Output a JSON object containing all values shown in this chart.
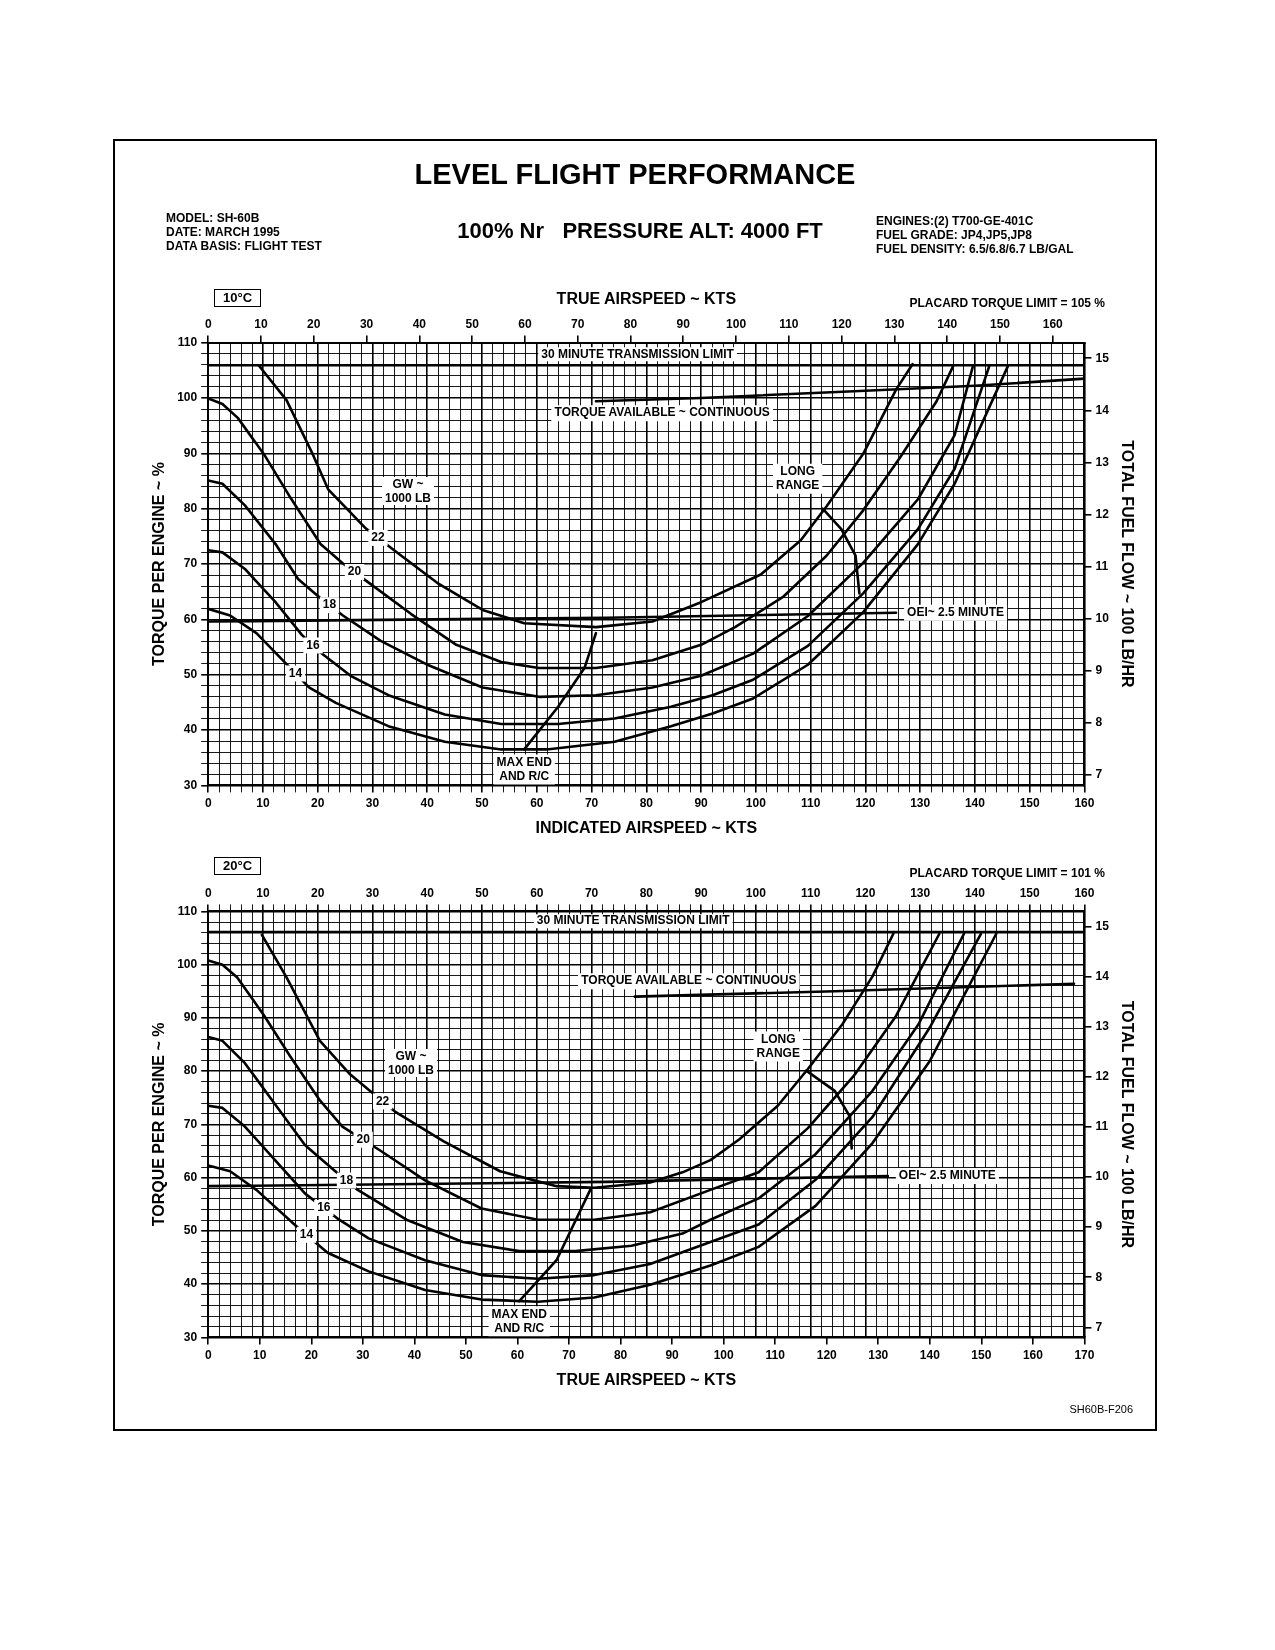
{
  "chart_data": [
    {
      "type": "line",
      "title": "LEVEL FLIGHT PERFORMANCE",
      "subtitle": "100% Nr   PRESSURE ALT: 4000 FT",
      "xlabel": "INDICATED AIRSPEED ~ KTS",
      "x2label": "TRUE AIRSPEED ~ KTS",
      "ylabel": "TORQUE PER ENGINE ~ %",
      "y2label": "TOTAL FUEL FLOW ~ 100 LB/HR",
      "xlim": [
        0,
        160
      ],
      "xticks": [
        0,
        {
          "value": 2,
          "label": null
        },
        {
          "value": 4,
          "label": null
        },
        {
          "value": 6,
          "label": null
        },
        {
          "value": 8,
          "label": null
        },
        10,
        {
          "value": 12,
          "label": null
        },
        {
          "value": 14,
          "label": null
        },
        {
          "value": 16,
          "label": null
        },
        {
          "value": 18,
          "label": null
        },
        20,
        {
          "value": 22,
          "label": null
        },
        {
          "value": 24,
          "label": null
        },
        {
          "value": 26,
          "label": null
        },
        {
          "value": 28,
          "label": null
        },
        30,
        {
          "value": 32,
          "label": null
        },
        {
          "value": 34,
          "label": null
        },
        {
          "value": 36,
          "label": null
        },
        {
          "value": 38,
          "label": null
        },
        40,
        {
          "value": 42,
          "label": null
        },
        {
          "value": 44,
          "label": null
        },
        {
          "value": 46,
          "label": null
        },
        {
          "value": 48,
          "label": null
        },
        50,
        {
          "value": 52,
          "label": null
        },
        {
          "value": 54,
          "label": null
        },
        {
          "value": 56,
          "label": null
        },
        {
          "value": 58,
          "label": null
        },
        60,
        {
          "value": 62,
          "label": null
        },
        {
          "value": 64,
          "label": null
        },
        {
          "value": 66,
          "label": null
        },
        {
          "value": 68,
          "label": null
        },
        70,
        {
          "value": 72,
          "label": null
        },
        {
          "value": 74,
          "label": null
        },
        {
          "value": 76,
          "label": null
        },
        {
          "value": 78,
          "label": null
        },
        80,
        {
          "value": 82,
          "label": null
        },
        {
          "value": 84,
          "label": null
        },
        {
          "value": 86,
          "label": null
        },
        {
          "value": 88,
          "label": null
        },
        90,
        {
          "value": 92,
          "label": null
        },
        {
          "value": 94,
          "label": null
        },
        {
          "value": 96,
          "label": null
        },
        {
          "value": 98,
          "label": null
        },
        100,
        {
          "value": 102,
          "label": null
        },
        {
          "value": 104,
          "label": null
        },
        {
          "value": 106,
          "label": null
        },
        {
          "value": 108,
          "label": null
        },
        110,
        {
          "value": 112,
          "label": null
        },
        {
          "value": 114,
          "label": null
        },
        {
          "value": 116,
          "label": null
        },
        {
          "value": 118,
          "label": null
        },
        120,
        {
          "value": 122,
          "label": null
        },
        {
          "value": 124,
          "label": null
        },
        {
          "value": 126,
          "label": null
        },
        {
          "value": 128,
          "label": null
        },
        130,
        {
          "value": 132,
          "label": null
        },
        {
          "value": 134,
          "label": null
        },
        {
          "value": 136,
          "label": null
        },
        {
          "value": 138,
          "label": null
        },
        140,
        {
          "value": 142,
          "label": null
        },
        {
          "value": 144,
          "label": null
        },
        {
          "value": 146,
          "label": null
        },
        {
          "value": 148,
          "label": null
        },
        150,
        {
          "value": 152,
          "label": null
        },
        {
          "value": 154,
          "label": null
        },
        {
          "value": 156,
          "label": null
        },
        {
          "value": 158,
          "label": null
        },
        160
      ],
      "x2lim": [
        0,
        166
      ],
      "x2ticks": [
        0,
        10,
        20,
        30,
        40,
        50,
        60,
        70,
        80,
        90,
        100,
        110,
        120,
        130,
        140,
        150,
        160
      ],
      "ylim": [
        30,
        110
      ],
      "yticks": [
        30,
        {
          "value": 32,
          "label": null
        },
        {
          "value": 34,
          "label": null
        },
        {
          "value": 36,
          "label": null
        },
        {
          "value": 38,
          "label": null
        },
        40,
        {
          "value": 42,
          "label": null
        },
        {
          "value": 44,
          "label": null
        },
        {
          "value": 46,
          "label": null
        },
        {
          "value": 48,
          "label": null
        },
        50,
        {
          "value": 52,
          "label": null
        },
        {
          "value": 54,
          "label": null
        },
        {
          "value": 56,
          "label": null
        },
        {
          "value": 58,
          "label": null
        },
        60,
        {
          "value": 62,
          "label": null
        },
        {
          "value": 64,
          "label": null
        },
        {
          "value": 66,
          "label": null
        },
        {
          "value": 68,
          "label": null
        },
        70,
        {
          "value": 72,
          "label": null
        },
        {
          "value": 74,
          "label": null
        },
        {
          "value": 76,
          "label": null
        },
        {
          "value": 78,
          "label": null
        },
        80,
        {
          "value": 82,
          "label": null
        },
        {
          "value": 84,
          "label": null
        },
        {
          "value": 86,
          "label": null
        },
        {
          "value": 88,
          "label": null
        },
        90,
        {
          "value": 92,
          "label": null
        },
        {
          "value": 94,
          "label": null
        },
        {
          "value": 96,
          "label": null
        },
        {
          "value": 98,
          "label": null
        },
        100,
        {
          "value": 102,
          "label": null
        },
        {
          "value": 104,
          "label": null
        },
        {
          "value": 106,
          "label": null
        },
        {
          "value": 108,
          "label": null
        },
        110
      ],
      "y2lim": [
        6.8,
        15.3
      ],
      "y2ticks": [
        7,
        8,
        9,
        10,
        11,
        12,
        13,
        14,
        15
      ],
      "grid": true,
      "marker": "none",
      "line_style": "solid",
      "annotations": [
        "MODEL: SH-60B",
        "DATE: MARCH 1995",
        "DATA BASIS: FLIGHT TEST",
        "ENGINES:(2) T700-GE-401C",
        "FUEL GRADE: JP4,JP5,JP8",
        "FUEL DENSITY: 6.5/6.8/6.7 LB/GAL",
        "10°C",
        "PLACARD TORQUE LIMIT = 105 %",
        "GW ~\n1000 LB"
      ],
      "ref_lines": [
        {
          "axis": "y",
          "value": 105.9,
          "label": "30 MINUTE TRANSMISSION LIMIT",
          "color": "#000000"
        }
      ],
      "series": [
        {
          "name": "22",
          "color": "#000000",
          "x": [
            9.2,
            14.3,
            19.1,
            21.9,
            28.8,
            34.3,
            41.8,
            50.1,
            57.7,
            70.8,
            81.1,
            90.0,
            100.9,
            108.2,
            112.9,
            119.6,
            125.6,
            128.6
          ],
          "values": [
            105.9,
            99.6,
            89.8,
            83.5,
            76.4,
            72.2,
            66.6,
            61.7,
            59.3,
            58.6,
            59.6,
            63.1,
            68.1,
            74.3,
            80.4,
            89.9,
            101.5,
            106.1
          ]
        },
        {
          "name": "20",
          "color": "#000000",
          "x": [
            0,
            2.6,
            5.4,
            10.2,
            15.0,
            20.5,
            24.6,
            28.8,
            37.0,
            45.3,
            53.5,
            60.4,
            70.8,
            81.1,
            90.0,
            96.2,
            104.9,
            112.9,
            119.6,
            126.3,
            133.0,
            136.0
          ],
          "values": [
            99.9,
            98.9,
            96.4,
            89.8,
            82.0,
            73.6,
            70.1,
            67.0,
            61.0,
            55.4,
            52.3,
            51.2,
            51.2,
            52.6,
            55.4,
            58.6,
            64.0,
            71.5,
            79.7,
            89.2,
            99.4,
            105.7
          ]
        },
        {
          "name": "18",
          "color": "#000000",
          "x": [
            0,
            2.6,
            6.7,
            12.3,
            16.4,
            20.5,
            24.6,
            31.5,
            39.8,
            50.1,
            60.4,
            70.8,
            81.1,
            90.0,
            99.5,
            109.5,
            119.6,
            129.6,
            136.3,
            139.6
          ],
          "values": [
            85.1,
            84.5,
            80.6,
            73.6,
            67.3,
            63.8,
            60.7,
            56.1,
            51.9,
            47.7,
            46.0,
            46.3,
            47.7,
            49.8,
            53.8,
            60.6,
            70.2,
            81.7,
            93.3,
            105.6
          ]
        },
        {
          "name": "16",
          "color": "#000000",
          "x": [
            0,
            2.6,
            6.7,
            12.3,
            17.1,
            20.5,
            26.0,
            32.9,
            43.2,
            53.5,
            63.9,
            74.2,
            84.5,
            92.1,
            99.5,
            109.5,
            119.6,
            129.6,
            136.3,
            142.6
          ],
          "values": [
            72.5,
            72.1,
            69.1,
            63.1,
            57.2,
            54.0,
            49.8,
            46.3,
            42.8,
            41.1,
            41.1,
            42.1,
            44.2,
            46.3,
            49.1,
            55.2,
            64.7,
            76.3,
            87.2,
            105.7
          ]
        },
        {
          "name": "14",
          "color": "#000000",
          "x": [
            0,
            4.0,
            8.8,
            14.3,
            18.4,
            23.3,
            32.9,
            43.2,
            53.5,
            61.8,
            74.2,
            84.5,
            92.1,
            99.5,
            109.5,
            119.6,
            129.6,
            136.3,
            146.0
          ],
          "values": [
            61.9,
            60.7,
            57.5,
            51.9,
            47.7,
            44.9,
            40.7,
            37.9,
            36.5,
            36.5,
            37.9,
            40.7,
            43.0,
            45.7,
            51.8,
            61.3,
            73.6,
            84.5,
            105.7
          ]
        },
        {
          "name": "TORQUE AVAILABLE ~ CONTINUOUS",
          "color": "#000000",
          "x": [
            70.8,
            90,
            120,
            140,
            160
          ],
          "values": [
            99.4,
            100,
            101.3,
            102.2,
            103.5
          ]
        },
        {
          "name": "OEI~ 2.5 MINUTE",
          "color": "#000000",
          "x": [
            0,
            72.8,
            125.6
          ],
          "values": [
            59.6,
            60.3,
            61.2
          ]
        },
        {
          "name": "MAX END\nAND R/C",
          "color": "#000000",
          "x": [
            57.7,
            63.9,
            68.7,
            70.8
          ],
          "values": [
            36.5,
            44.2,
            51.2,
            57.5
          ]
        },
        {
          "name": "LONG\nRANGE",
          "color": "#000000",
          "x": [
            112.2,
            115.6,
            118.2,
            118.9
          ],
          "values": [
            80.0,
            76.3,
            71.5,
            64.7
          ]
        }
      ]
    },
    {
      "type": "line",
      "xlabel": "TRUE AIRSPEED ~ KTS",
      "ylabel": "TORQUE PER ENGINE ~ %",
      "y2label": "TOTAL FUEL FLOW ~ 100 LB/HR",
      "xlim": [
        0,
        170
      ],
      "xticks": [
        0,
        10,
        20,
        30,
        40,
        50,
        60,
        70,
        80,
        90,
        100,
        110,
        120,
        130,
        140,
        150,
        160,
        170
      ],
      "x2lim": [
        0,
        160
      ],
      "x2ticks": [
        0,
        {
          "value": 2,
          "label": null
        },
        {
          "value": 4,
          "label": null
        },
        {
          "value": 6,
          "label": null
        },
        {
          "value": 8,
          "label": null
        },
        10,
        {
          "value": 12,
          "label": null
        },
        {
          "value": 14,
          "label": null
        },
        {
          "value": 16,
          "label": null
        },
        {
          "value": 18,
          "label": null
        },
        20,
        {
          "value": 22,
          "label": null
        },
        {
          "value": 24,
          "label": null
        },
        {
          "value": 26,
          "label": null
        },
        {
          "value": 28,
          "label": null
        },
        30,
        {
          "value": 32,
          "label": null
        },
        {
          "value": 34,
          "label": null
        },
        {
          "value": 36,
          "label": null
        },
        {
          "value": 38,
          "label": null
        },
        40,
        {
          "value": 42,
          "label": null
        },
        {
          "value": 44,
          "label": null
        },
        {
          "value": 46,
          "label": null
        },
        {
          "value": 48,
          "label": null
        },
        50,
        {
          "value": 52,
          "label": null
        },
        {
          "value": 54,
          "label": null
        },
        {
          "value": 56,
          "label": null
        },
        {
          "value": 58,
          "label": null
        },
        60,
        {
          "value": 62,
          "label": null
        },
        {
          "value": 64,
          "label": null
        },
        {
          "value": 66,
          "label": null
        },
        {
          "value": 68,
          "label": null
        },
        70,
        {
          "value": 72,
          "label": null
        },
        {
          "value": 74,
          "label": null
        },
        {
          "value": 76,
          "label": null
        },
        {
          "value": 78,
          "label": null
        },
        80,
        {
          "value": 82,
          "label": null
        },
        {
          "value": 84,
          "label": null
        },
        {
          "value": 86,
          "label": null
        },
        {
          "value": 88,
          "label": null
        },
        90,
        {
          "value": 92,
          "label": null
        },
        {
          "value": 94,
          "label": null
        },
        {
          "value": 96,
          "label": null
        },
        {
          "value": 98,
          "label": null
        },
        100,
        {
          "value": 102,
          "label": null
        },
        {
          "value": 104,
          "label": null
        },
        {
          "value": 106,
          "label": null
        },
        {
          "value": 108,
          "label": null
        },
        110,
        {
          "value": 112,
          "label": null
        },
        {
          "value": 114,
          "label": null
        },
        {
          "value": 116,
          "label": null
        },
        {
          "value": 118,
          "label": null
        },
        120,
        {
          "value": 122,
          "label": null
        },
        {
          "value": 124,
          "label": null
        },
        {
          "value": 126,
          "label": null
        },
        {
          "value": 128,
          "label": null
        },
        130,
        {
          "value": 132,
          "label": null
        },
        {
          "value": 134,
          "label": null
        },
        {
          "value": 136,
          "label": null
        },
        {
          "value": 138,
          "label": null
        },
        140,
        {
          "value": 142,
          "label": null
        },
        {
          "value": 144,
          "label": null
        },
        {
          "value": 146,
          "label": null
        },
        {
          "value": 148,
          "label": null
        },
        150,
        {
          "value": 152,
          "label": null
        },
        {
          "value": 154,
          "label": null
        },
        {
          "value": 156,
          "label": null
        },
        {
          "value": 158,
          "label": null
        },
        160
      ],
      "ylim": [
        30,
        110
      ],
      "yticks": [
        30,
        {
          "value": 32,
          "label": null
        },
        {
          "value": 34,
          "label": null
        },
        {
          "value": 36,
          "label": null
        },
        {
          "value": 38,
          "label": null
        },
        40,
        {
          "value": 42,
          "label": null
        },
        {
          "value": 44,
          "label": null
        },
        {
          "value": 46,
          "label": null
        },
        {
          "value": 48,
          "label": null
        },
        50,
        {
          "value": 52,
          "label": null
        },
        {
          "value": 54,
          "label": null
        },
        {
          "value": 56,
          "label": null
        },
        {
          "value": 58,
          "label": null
        },
        60,
        {
          "value": 62,
          "label": null
        },
        {
          "value": 64,
          "label": null
        },
        {
          "value": 66,
          "label": null
        },
        {
          "value": 68,
          "label": null
        },
        70,
        {
          "value": 72,
          "label": null
        },
        {
          "value": 74,
          "label": null
        },
        {
          "value": 76,
          "label": null
        },
        {
          "value": 78,
          "label": null
        },
        80,
        {
          "value": 82,
          "label": null
        },
        {
          "value": 84,
          "label": null
        },
        {
          "value": 86,
          "label": null
        },
        {
          "value": 88,
          "label": null
        },
        90,
        {
          "value": 92,
          "label": null
        },
        {
          "value": 94,
          "label": null
        },
        {
          "value": 96,
          "label": null
        },
        {
          "value": 98,
          "label": null
        },
        100,
        {
          "value": 102,
          "label": null
        },
        {
          "value": 104,
          "label": null
        },
        {
          "value": 106,
          "label": null
        },
        {
          "value": 108,
          "label": null
        },
        110
      ],
      "y2lim": [
        6.8,
        15.3
      ],
      "y2ticks": [
        7,
        8,
        9,
        10,
        11,
        12,
        13,
        14,
        15
      ],
      "grid": true,
      "marker": "none",
      "line_style": "solid",
      "annotations": [
        "20°C",
        "PLACARD TORQUE LIMIT = 101 %",
        "SH60B-F206",
        "GW ~\n1000 LB"
      ],
      "ref_lines": [
        {
          "axis": "y",
          "value": 106.1,
          "label": "30 MINUTE TRANSMISSION LIMIT",
          "color": "#000000"
        }
      ],
      "series": [
        {
          "name": "22",
          "color": "#000000",
          "axis": "x2",
          "x": [
            9.8,
            14.3,
            20.4,
            25.9,
            30.0,
            34.1,
            43.0,
            53.3,
            63.6,
            70.5,
            80.7,
            86.6,
            91.7,
            97.0,
            104.0,
            109.5,
            115.8,
            121.3,
            125.1
          ],
          "values": [
            105.6,
            97.6,
            85.7,
            79.4,
            75.9,
            72.4,
            66.8,
            61.2,
            58.4,
            58.1,
            59.1,
            61.0,
            63.3,
            67.2,
            73.5,
            80.4,
            88.8,
            97.8,
            105.8
          ]
        },
        {
          "name": "20",
          "color": "#000000",
          "axis": "x2",
          "x": [
            0,
            2.6,
            5.3,
            10.1,
            14.9,
            20.4,
            24.5,
            31.4,
            39.6,
            49.9,
            60.2,
            70.5,
            80.7,
            91.7,
            100.5,
            109.5,
            117.8,
            125.5,
            133.5
          ],
          "values": [
            100.8,
            100.0,
            97.6,
            90.6,
            82.9,
            74.5,
            69.6,
            65.1,
            59.5,
            54.2,
            52.1,
            52.1,
            53.5,
            57.7,
            61.0,
            69.3,
            79.0,
            90.2,
            105.8
          ]
        },
        {
          "name": "18",
          "color": "#000000",
          "axis": "x2",
          "x": [
            0,
            2.6,
            6.7,
            12.2,
            17.7,
            23.2,
            27.3,
            36.2,
            46.5,
            56.8,
            67.0,
            77.3,
            86.6,
            91.7,
            100.5,
            110.9,
            121.3,
            129.7,
            138.0
          ],
          "values": [
            86.4,
            85.7,
            81.5,
            73.8,
            66.1,
            61.2,
            57.7,
            52.1,
            47.9,
            46.2,
            46.2,
            47.2,
            49.5,
            52.1,
            56.1,
            64.4,
            76.3,
            88.8,
            105.8
          ]
        },
        {
          "name": "16",
          "color": "#000000",
          "axis": "x2",
          "x": [
            0,
            2.6,
            6.7,
            12.2,
            17.7,
            23.9,
            29.3,
            39.6,
            49.9,
            60.2,
            70.5,
            80.7,
            91.7,
            100.5,
            110.9,
            121.3,
            131.7,
            141.1
          ],
          "values": [
            73.5,
            73.1,
            69.6,
            63.3,
            57.0,
            52.1,
            48.6,
            44.5,
            41.7,
            41.0,
            41.7,
            43.8,
            47.9,
            51.2,
            59.6,
            71.4,
            88.1,
            105.8
          ]
        },
        {
          "name": "14",
          "color": "#000000",
          "axis": "x2",
          "x": [
            0,
            4.0,
            8.8,
            16.3,
            21.8,
            29.3,
            39.6,
            49.9,
            60.2,
            70.5,
            80.7,
            91.7,
            100.5,
            110.9,
            121.3,
            131.7,
            143.9
          ],
          "values": [
            62.3,
            61.2,
            57.7,
            50.7,
            45.9,
            42.4,
            38.9,
            37.1,
            36.7,
            37.5,
            39.9,
            43.5,
            47.0,
            54.7,
            66.5,
            81.8,
            105.8
          ]
        },
        {
          "name": "TORQUE AVAILABLE ~ CONTINUOUS",
          "color": "#000000",
          "axis": "x2",
          "x": [
            77.9,
            114.4,
            158.1
          ],
          "values": [
            94.0,
            95.0,
            96.4
          ]
        },
        {
          "name": "OEI~ 2.5 MINUTE",
          "color": "#000000",
          "axis": "x2",
          "x": [
            0,
            72.7,
            124.1
          ],
          "values": [
            58.4,
            59.2,
            60.3
          ]
        },
        {
          "name": "MAX END\nAND R/C",
          "color": "#000000",
          "axis": "x2",
          "x": [
            56.8,
            63.6,
            69.8
          ],
          "values": [
            36.8,
            44.5,
            57.8
          ]
        },
        {
          "name": "LONG\nRANGE",
          "color": "#000000",
          "axis": "x2",
          "x": [
            109.2,
            114.4,
            117.2,
            117.5
          ],
          "values": [
            80.1,
            76.3,
            71.4,
            65.5
          ]
        }
      ]
    }
  ]
}
